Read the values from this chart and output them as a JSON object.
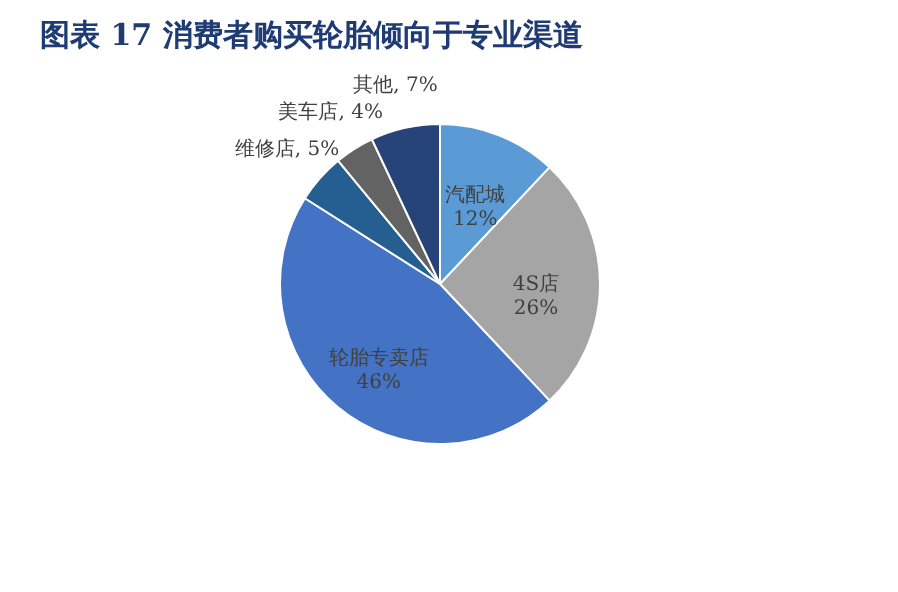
{
  "chart_data": {
    "type": "pie",
    "title": "图表 17   消费者购买轮胎倾向于专业渠道",
    "categories": [
      "汽配城",
      "4S店",
      "轮胎专卖店",
      "维修店",
      "美车店",
      "其他"
    ],
    "values": [
      12,
      26,
      46,
      5,
      4,
      7
    ],
    "value_labels": [
      "12%",
      "26%",
      "46%",
      "5%",
      "4%",
      "7%"
    ],
    "colors": [
      "#5b9bd5",
      "#a5a5a5",
      "#4472c4",
      "#255e91",
      "#636363",
      "#264478"
    ],
    "legend": false
  }
}
